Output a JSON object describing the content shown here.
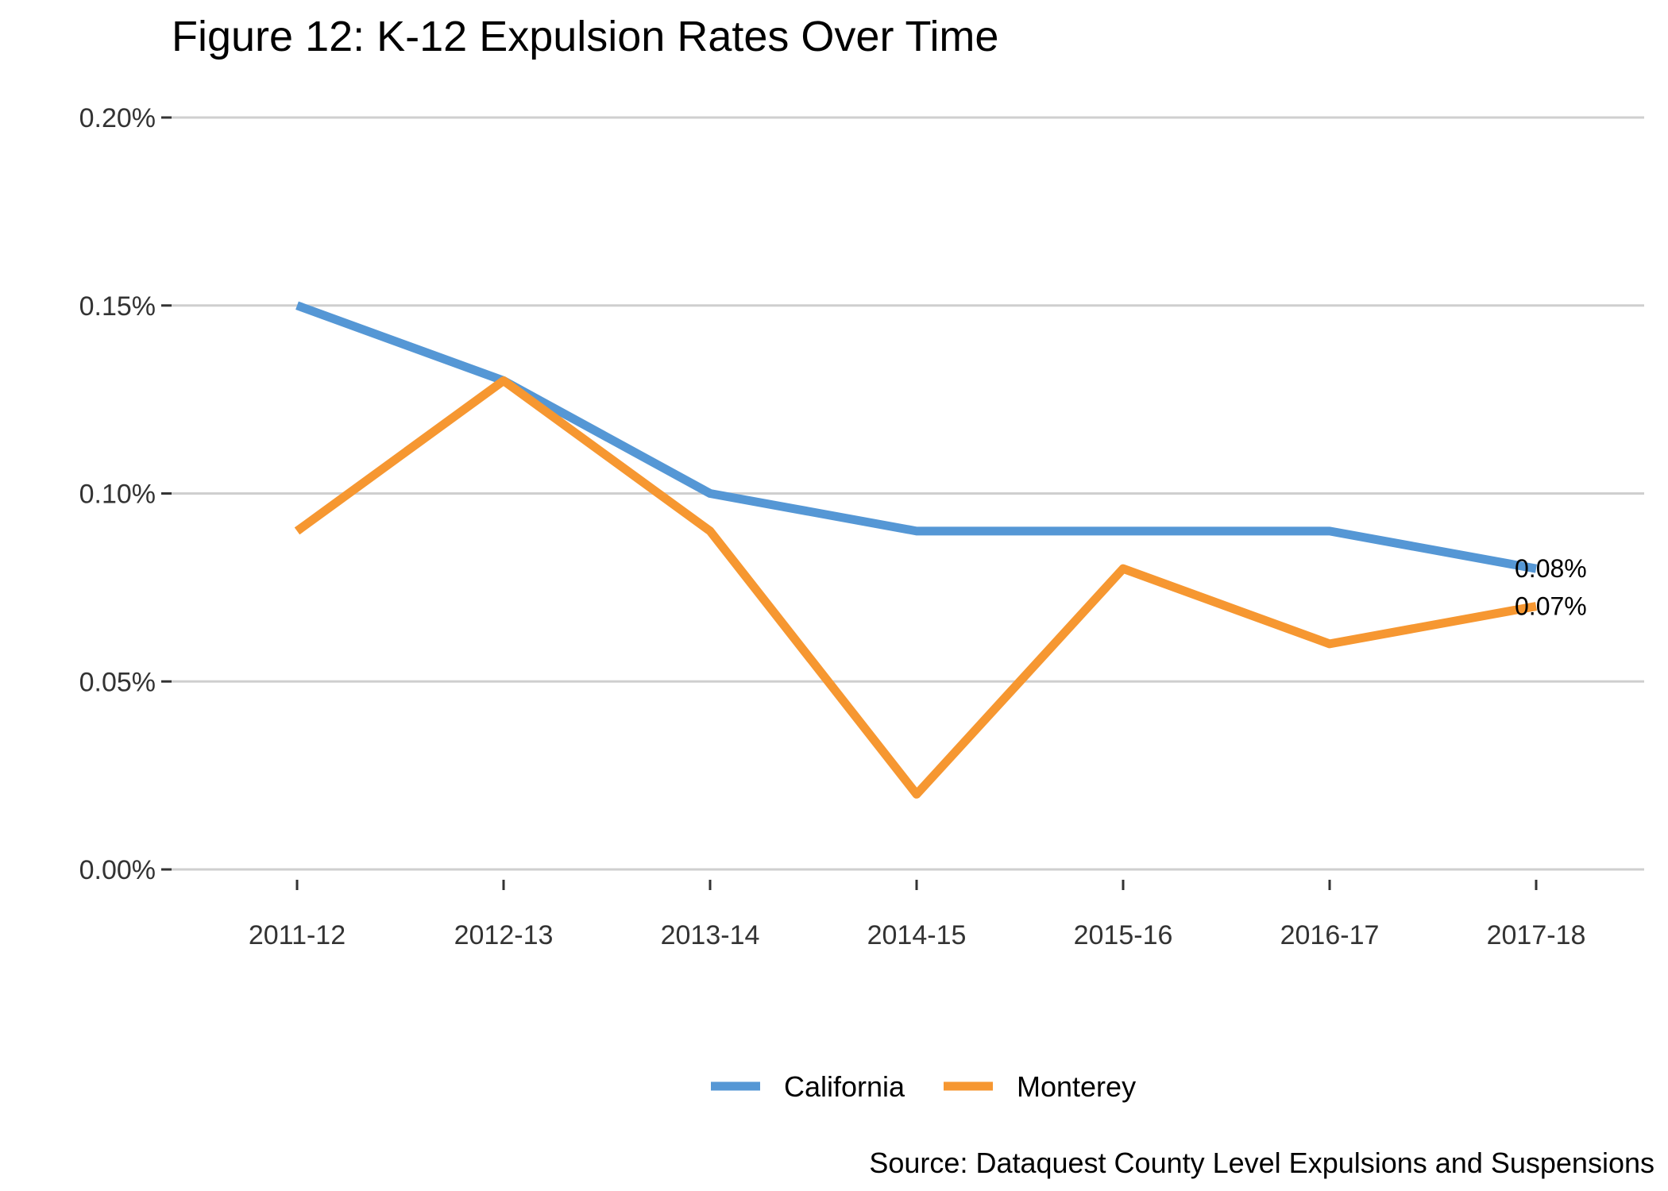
{
  "chart_data": {
    "type": "line",
    "title": "Figure 12: K-12 Expulsion Rates Over Time",
    "caption": "Source: Dataquest County Level Expulsions and Suspensions",
    "x": [
      "2011-12",
      "2012-13",
      "2013-14",
      "2014-15",
      "2015-16",
      "2016-17",
      "2017-18"
    ],
    "y_ticks": [
      0.0,
      0.05,
      0.1,
      0.15,
      0.2
    ],
    "y_tick_labels": [
      "0.00%",
      "0.05%",
      "0.10%",
      "0.15%",
      "0.20%"
    ],
    "ylim": [
      0.0,
      0.2
    ],
    "y_unit": "percent",
    "grid": "horizontal",
    "legend_position": "bottom",
    "series": [
      {
        "name": "California",
        "color": "#5597d5",
        "values": [
          0.15,
          0.13,
          0.1,
          0.09,
          0.09,
          0.09,
          0.08
        ],
        "end_label": "0.08%"
      },
      {
        "name": "Monterey",
        "color": "#f69731",
        "values": [
          0.09,
          0.13,
          0.09,
          0.02,
          0.08,
          0.06,
          0.07
        ],
        "end_label": "0.07%"
      }
    ]
  }
}
